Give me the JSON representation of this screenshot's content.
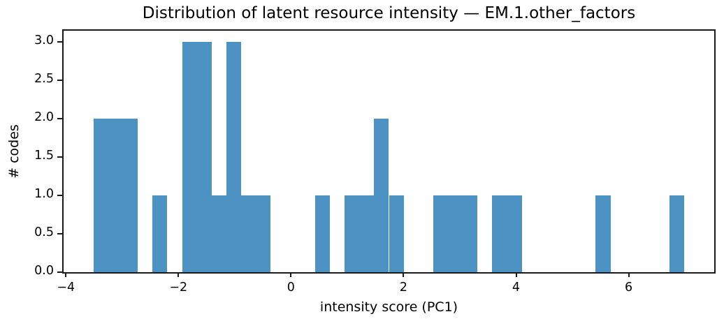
{
  "chart_data": {
    "type": "bar",
    "chart_kind": "histogram",
    "title": "Distribution of latent resource intensity — EM.1.other_factors",
    "xlabel": "intensity score (PC1)",
    "ylabel": "# codes",
    "bar_color": "#4c92c3",
    "axis_color": "#1a1a1a",
    "text_color": "#000000",
    "background": "#ffffff",
    "grid": false,
    "legend": null,
    "xlim": [
      -4.04,
      7.52
    ],
    "ylim": [
      0,
      3.15
    ],
    "xticks": {
      "values": [
        -4,
        -2,
        0,
        2,
        4,
        6
      ],
      "labels": [
        "−4",
        "−2",
        "0",
        "2",
        "4",
        "6"
      ]
    },
    "yticks": {
      "values": [
        0,
        0.5,
        1,
        1.5,
        2,
        2.5,
        3
      ],
      "labels": [
        "0.0",
        "0.5",
        "1.0",
        "1.5",
        "2.0",
        "2.5",
        "3.0"
      ]
    },
    "histogram": {
      "bin_start": -3.51,
      "bin_width": 0.2625,
      "num_bins": 40,
      "counts": [
        2,
        2,
        2,
        0,
        1,
        0,
        3,
        3,
        1,
        3,
        1,
        1,
        0,
        0,
        0,
        1,
        0,
        1,
        1,
        2,
        1,
        0,
        0,
        1,
        1,
        1,
        0,
        1,
        1,
        0,
        0,
        0,
        0,
        0,
        1,
        0,
        0,
        0,
        0,
        1
      ],
      "total_codes": 32
    }
  }
}
